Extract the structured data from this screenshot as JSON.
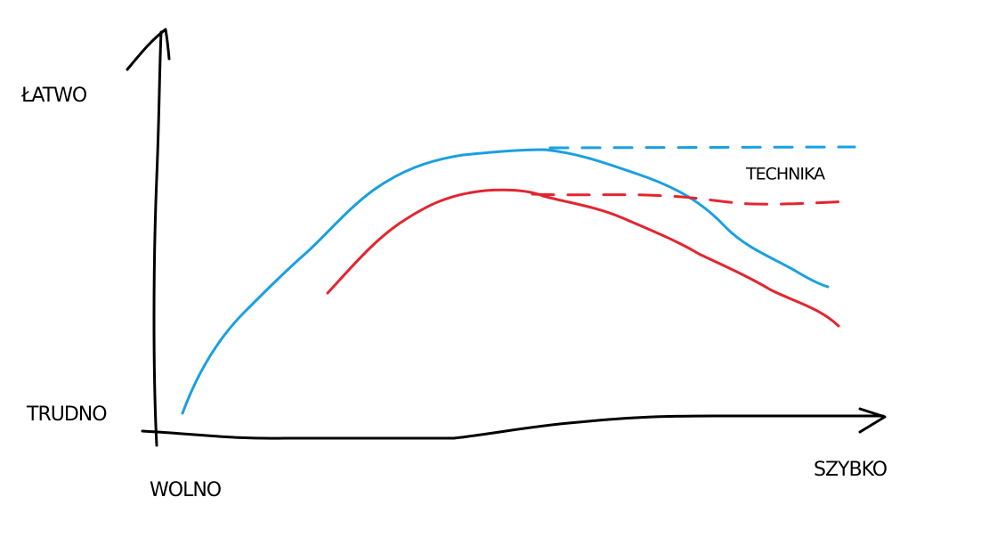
{
  "axes": {
    "y_top": "ŁATWO",
    "y_bottom": "TRUDNO",
    "x_left": "WOLNO",
    "x_right": "SZYBKO"
  },
  "annotations": {
    "technique": "TECHNIKA"
  }
}
